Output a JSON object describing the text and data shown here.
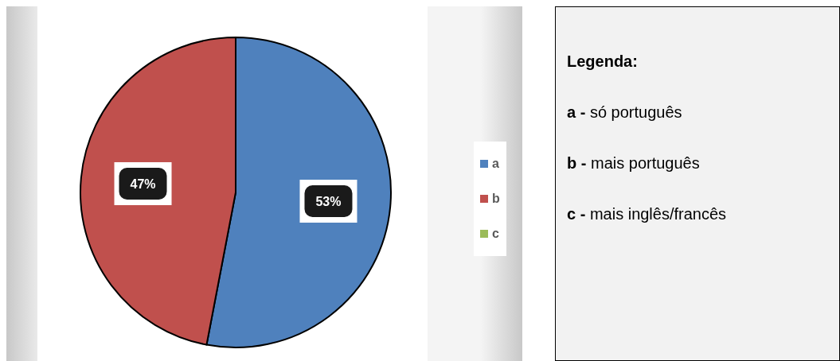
{
  "chart_data": {
    "type": "pie",
    "categories": [
      "a",
      "b",
      "c"
    ],
    "values": [
      53,
      47,
      0
    ],
    "colors": [
      "#4f81bd",
      "#c0504d",
      "#9bbb59"
    ],
    "value_labels": [
      "53%",
      "47%",
      null
    ],
    "legend": "right",
    "annotations": [
      "Legenda:",
      "a - só português",
      "b - mais português",
      "c - mais inglês/francês"
    ]
  }
}
